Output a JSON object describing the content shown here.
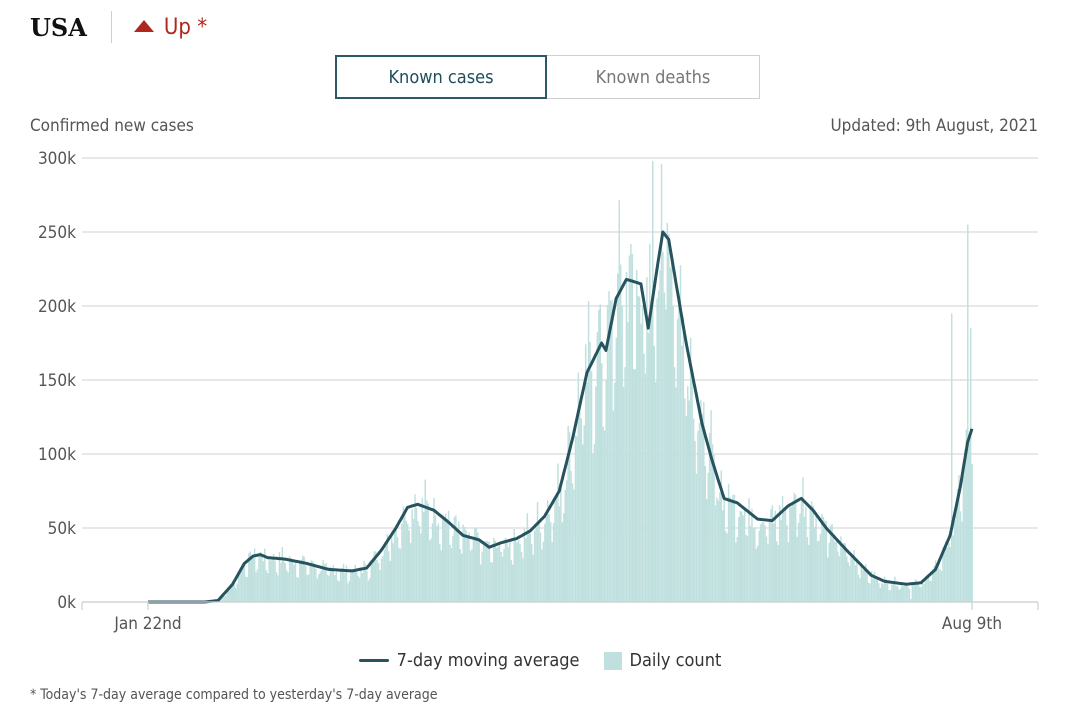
{
  "header": {
    "country": "USA",
    "trend_label": "Up *"
  },
  "tabs": [
    {
      "label": "Known cases",
      "active": true
    },
    {
      "label": "Known deaths",
      "active": false
    }
  ],
  "updated": "Updated: 9th August, 2021",
  "footnote": "* Today's 7-day average compared to yesterday's 7-day average",
  "colors": {
    "avg_line": "#27535f",
    "bars": "#bfe0de",
    "up": "#b0281d",
    "grid": "#d9d9d9"
  },
  "chart_data": {
    "type": "bar+line",
    "ylabel": "Confirmed new cases",
    "y_ticks": [
      "300k",
      "250k",
      "200k",
      "150k",
      "100k",
      "50k",
      "0k"
    ],
    "y_tick_values": [
      300000,
      250000,
      200000,
      150000,
      100000,
      50000,
      0
    ],
    "ylim": [
      0,
      300000
    ],
    "x_range": [
      "2020-01-22",
      "2021-08-09"
    ],
    "x_ticks": [
      "Jan 22nd",
      "Aug 9th"
    ],
    "x_tick_dates": [
      "2020-01-22",
      "2021-08-09"
    ],
    "grid": true,
    "legend": {
      "placement": "bottom-center"
    },
    "series": [
      {
        "name": "7-day moving average",
        "type": "line",
        "points": [
          [
            "2020-01-22",
            0
          ],
          [
            "2020-03-01",
            0
          ],
          [
            "2020-03-10",
            1000
          ],
          [
            "2020-03-20",
            12000
          ],
          [
            "2020-03-28",
            26000
          ],
          [
            "2020-04-03",
            31000
          ],
          [
            "2020-04-08",
            32000
          ],
          [
            "2020-04-13",
            30000
          ],
          [
            "2020-04-25",
            29000
          ],
          [
            "2020-05-10",
            26000
          ],
          [
            "2020-05-25",
            22000
          ],
          [
            "2020-06-10",
            21000
          ],
          [
            "2020-06-20",
            23000
          ],
          [
            "2020-06-30",
            35000
          ],
          [
            "2020-07-10",
            50000
          ],
          [
            "2020-07-18",
            64000
          ],
          [
            "2020-07-25",
            66000
          ],
          [
            "2020-08-05",
            62000
          ],
          [
            "2020-08-15",
            54000
          ],
          [
            "2020-08-25",
            45000
          ],
          [
            "2020-09-05",
            42000
          ],
          [
            "2020-09-12",
            37000
          ],
          [
            "2020-09-20",
            40000
          ],
          [
            "2020-10-01",
            43000
          ],
          [
            "2020-10-10",
            48000
          ],
          [
            "2020-10-20",
            58000
          ],
          [
            "2020-10-30",
            75000
          ],
          [
            "2020-11-08",
            110000
          ],
          [
            "2020-11-18",
            155000
          ],
          [
            "2020-11-28",
            175000
          ],
          [
            "2020-12-01",
            170000
          ],
          [
            "2020-12-08",
            205000
          ],
          [
            "2020-12-15",
            218000
          ],
          [
            "2020-12-25",
            215000
          ],
          [
            "2020-12-30",
            185000
          ],
          [
            "2021-01-05",
            225000
          ],
          [
            "2021-01-09",
            250000
          ],
          [
            "2021-01-13",
            245000
          ],
          [
            "2021-01-25",
            175000
          ],
          [
            "2021-02-05",
            120000
          ],
          [
            "2021-02-12",
            95000
          ],
          [
            "2021-02-20",
            70000
          ],
          [
            "2021-03-01",
            67000
          ],
          [
            "2021-03-15",
            56000
          ],
          [
            "2021-03-25",
            55000
          ],
          [
            "2021-04-05",
            65000
          ],
          [
            "2021-04-14",
            70000
          ],
          [
            "2021-04-22",
            62000
          ],
          [
            "2021-05-01",
            50000
          ],
          [
            "2021-05-15",
            35000
          ],
          [
            "2021-06-01",
            18000
          ],
          [
            "2021-06-10",
            14000
          ],
          [
            "2021-06-25",
            12000
          ],
          [
            "2021-07-05",
            13000
          ],
          [
            "2021-07-15",
            22000
          ],
          [
            "2021-07-25",
            45000
          ],
          [
            "2021-08-01",
            78000
          ],
          [
            "2021-08-06",
            108000
          ],
          [
            "2021-08-09",
            117000
          ]
        ]
      },
      {
        "name": "Daily count",
        "type": "bar",
        "spikes": [
          [
            "2020-12-11",
            228000
          ],
          [
            "2021-01-02",
            298000
          ],
          [
            "2021-01-08",
            296000
          ],
          [
            "2021-06-28",
            2000
          ],
          [
            "2021-07-26",
            195000
          ],
          [
            "2021-08-06",
            255000
          ],
          [
            "2021-08-08",
            185000
          ]
        ]
      }
    ]
  }
}
